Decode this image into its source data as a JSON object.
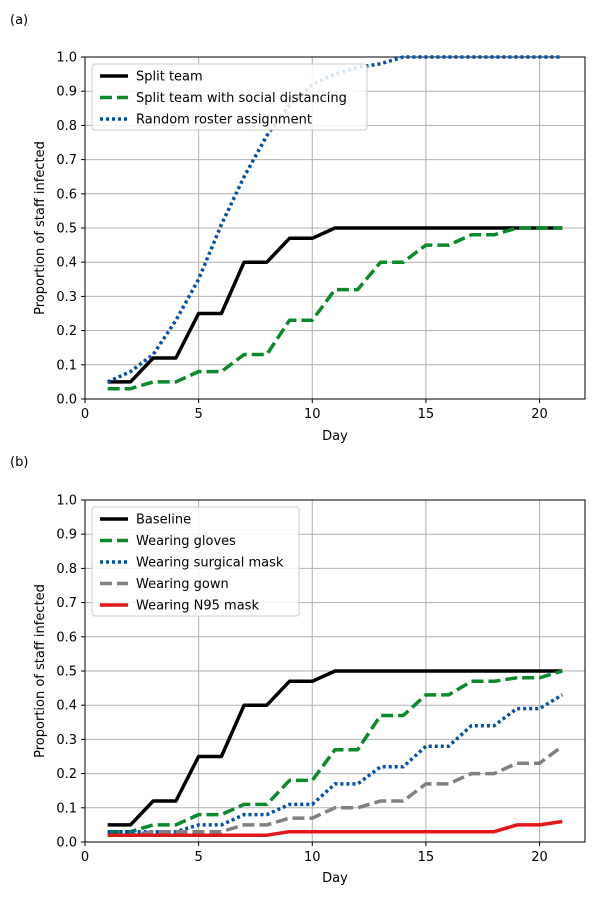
{
  "chart_data": [
    {
      "type": "line",
      "panel_label": "(a)",
      "xlabel": "Day",
      "ylabel": "Proportion of staff infected",
      "xlim": [
        0,
        22
      ],
      "ylim": [
        0,
        1.0
      ],
      "xticks": [
        0,
        5,
        10,
        15,
        20
      ],
      "yticks": [
        0.0,
        0.1,
        0.2,
        0.3,
        0.4,
        0.5,
        0.6,
        0.7,
        0.8,
        0.9,
        1.0
      ],
      "grid": true,
      "legend_position": "top-left",
      "series": [
        {
          "name": "Split team",
          "color": "#000000",
          "style": "solid",
          "x": [
            1,
            2,
            3,
            4,
            5,
            6,
            7,
            8,
            9,
            10,
            11,
            12,
            13,
            14,
            15,
            16,
            17,
            18,
            19,
            20,
            21
          ],
          "y": [
            0.05,
            0.05,
            0.12,
            0.12,
            0.25,
            0.25,
            0.4,
            0.4,
            0.47,
            0.47,
            0.5,
            0.5,
            0.5,
            0.5,
            0.5,
            0.5,
            0.5,
            0.5,
            0.5,
            0.5,
            0.5
          ]
        },
        {
          "name": "Split team with social distancing",
          "color": "#0a8a2a",
          "style": "dashed",
          "x": [
            1,
            2,
            3,
            4,
            5,
            6,
            7,
            8,
            9,
            10,
            11,
            12,
            13,
            14,
            15,
            16,
            17,
            18,
            19,
            20,
            21
          ],
          "y": [
            0.03,
            0.03,
            0.05,
            0.05,
            0.08,
            0.08,
            0.13,
            0.13,
            0.23,
            0.23,
            0.32,
            0.32,
            0.4,
            0.4,
            0.45,
            0.45,
            0.48,
            0.48,
            0.5,
            0.5,
            0.5
          ]
        },
        {
          "name": "Random roster assignment",
          "color": "#0050a8",
          "style": "dotted",
          "x": [
            1,
            2,
            3,
            4,
            5,
            6,
            7,
            8,
            9,
            10,
            11,
            12,
            13,
            14,
            15,
            16,
            17,
            18,
            19,
            20,
            21
          ],
          "y": [
            0.05,
            0.08,
            0.13,
            0.23,
            0.35,
            0.51,
            0.65,
            0.77,
            0.86,
            0.92,
            0.95,
            0.97,
            0.98,
            1.0,
            1.0,
            1.0,
            1.0,
            1.0,
            1.0,
            1.0,
            1.0
          ]
        }
      ]
    },
    {
      "type": "line",
      "panel_label": "(b)",
      "xlabel": "Day",
      "ylabel": "Proportion of staff infected",
      "xlim": [
        0,
        22
      ],
      "ylim": [
        0,
        1.0
      ],
      "xticks": [
        0,
        5,
        10,
        15,
        20
      ],
      "yticks": [
        0.0,
        0.1,
        0.2,
        0.3,
        0.4,
        0.5,
        0.6,
        0.7,
        0.8,
        0.9,
        1.0
      ],
      "grid": true,
      "legend_position": "top-left",
      "series": [
        {
          "name": "Baseline",
          "color": "#000000",
          "style": "solid",
          "x": [
            1,
            2,
            3,
            4,
            5,
            6,
            7,
            8,
            9,
            10,
            11,
            12,
            13,
            14,
            15,
            16,
            17,
            18,
            19,
            20,
            21
          ],
          "y": [
            0.05,
            0.05,
            0.12,
            0.12,
            0.25,
            0.25,
            0.4,
            0.4,
            0.47,
            0.47,
            0.5,
            0.5,
            0.5,
            0.5,
            0.5,
            0.5,
            0.5,
            0.5,
            0.5,
            0.5,
            0.5
          ]
        },
        {
          "name": "Wearing gloves",
          "color": "#0a8a2a",
          "style": "dashed",
          "x": [
            1,
            2,
            3,
            4,
            5,
            6,
            7,
            8,
            9,
            10,
            11,
            12,
            13,
            14,
            15,
            16,
            17,
            18,
            19,
            20,
            21
          ],
          "y": [
            0.03,
            0.03,
            0.05,
            0.05,
            0.08,
            0.08,
            0.11,
            0.11,
            0.18,
            0.18,
            0.27,
            0.27,
            0.37,
            0.37,
            0.43,
            0.43,
            0.47,
            0.47,
            0.48,
            0.48,
            0.5
          ]
        },
        {
          "name": "Wearing surgical mask",
          "color": "#0050a8",
          "style": "dotted",
          "x": [
            1,
            2,
            3,
            4,
            5,
            6,
            7,
            8,
            9,
            10,
            11,
            12,
            13,
            14,
            15,
            16,
            17,
            18,
            19,
            20,
            21
          ],
          "y": [
            0.03,
            0.03,
            0.03,
            0.03,
            0.05,
            0.05,
            0.08,
            0.08,
            0.11,
            0.11,
            0.17,
            0.17,
            0.22,
            0.22,
            0.28,
            0.28,
            0.34,
            0.34,
            0.39,
            0.39,
            0.43
          ]
        },
        {
          "name": "Wearing gown",
          "color": "#808080",
          "style": "dashed",
          "x": [
            1,
            2,
            3,
            4,
            5,
            6,
            7,
            8,
            9,
            10,
            11,
            12,
            13,
            14,
            15,
            16,
            17,
            18,
            19,
            20,
            21
          ],
          "y": [
            0.02,
            0.02,
            0.03,
            0.03,
            0.03,
            0.03,
            0.05,
            0.05,
            0.07,
            0.07,
            0.1,
            0.1,
            0.12,
            0.12,
            0.17,
            0.17,
            0.2,
            0.2,
            0.23,
            0.23,
            0.28
          ]
        },
        {
          "name": "Wearing N95 mask",
          "color": "#e01818",
          "style": "solid",
          "x": [
            1,
            2,
            3,
            4,
            5,
            6,
            7,
            8,
            9,
            10,
            11,
            12,
            13,
            14,
            15,
            16,
            17,
            18,
            19,
            20,
            21
          ],
          "y": [
            0.02,
            0.02,
            0.02,
            0.02,
            0.02,
            0.02,
            0.02,
            0.02,
            0.03,
            0.03,
            0.03,
            0.03,
            0.03,
            0.03,
            0.03,
            0.03,
            0.03,
            0.03,
            0.05,
            0.05,
            0.06
          ]
        }
      ]
    }
  ]
}
